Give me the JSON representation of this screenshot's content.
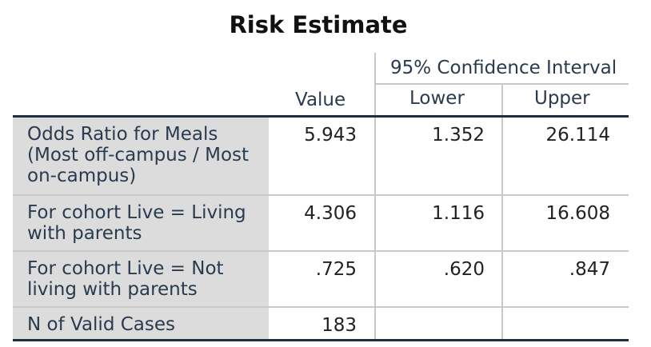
{
  "title": "Risk Estimate",
  "header": {
    "ci_label": "95% Confidence Interval",
    "value": "Value",
    "lower": "Lower",
    "upper": "Upper"
  },
  "rows": [
    {
      "label": "Odds Ratio for Meals (Most off-campus / Most on-campus)",
      "value": "5.943",
      "lower": "1.352",
      "upper": "26.114"
    },
    {
      "label": "For cohort Live = Living with parents",
      "value": "4.306",
      "lower": "1.116",
      "upper": "16.608"
    },
    {
      "label": "For cohort Live = Not living with parents",
      "value": ".725",
      "lower": ".620",
      "upper": ".847"
    },
    {
      "label": "N of Valid Cases",
      "value": "183",
      "lower": "",
      "upper": ""
    }
  ]
}
